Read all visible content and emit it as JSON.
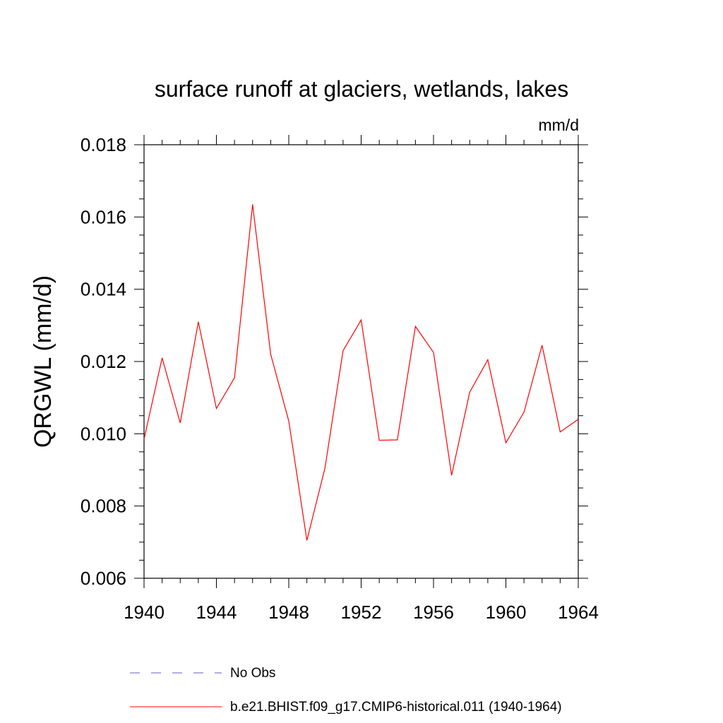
{
  "chart_data": {
    "type": "line",
    "title": "surface runoff at glaciers, wetlands, lakes",
    "units": "mm/d",
    "ylabel": "QRGWL  (mm/d)",
    "xlabel": "",
    "xlim": [
      1940,
      1964
    ],
    "ylim": [
      0.006,
      0.018
    ],
    "x_ticks": [
      1940,
      1944,
      1948,
      1952,
      1956,
      1960,
      1964
    ],
    "x_tick_labels": [
      "1940",
      "1944",
      "1948",
      "1952",
      "1956",
      "1960",
      "1964"
    ],
    "y_ticks": [
      0.006,
      0.008,
      0.01,
      0.012,
      0.014,
      0.016,
      0.018
    ],
    "y_tick_labels": [
      "0.006",
      "0.008",
      "0.010",
      "0.012",
      "0.014",
      "0.016",
      "0.018"
    ],
    "grid": false,
    "legend_placement": "bottom",
    "series": [
      {
        "name": "No Obs",
        "color": "#6a5acd",
        "style": "dashed",
        "values": []
      },
      {
        "name": "b.e21.BHIST.f09_g17.CMIP6-historical.011 (1940-1964)",
        "color": "#ff0000",
        "style": "solid",
        "x": [
          1940,
          1941,
          1942,
          1943,
          1944,
          1945,
          1946,
          1947,
          1948,
          1949,
          1950,
          1951,
          1952,
          1953,
          1954,
          1955,
          1956,
          1957,
          1958,
          1959,
          1960,
          1961,
          1962,
          1963,
          1964
        ],
        "values": [
          0.00985,
          0.0121,
          0.0103,
          0.0131,
          0.0107,
          0.01155,
          0.01635,
          0.0122,
          0.01035,
          0.00705,
          0.00905,
          0.0123,
          0.01315,
          0.00982,
          0.00983,
          0.01297,
          0.01225,
          0.00885,
          0.01115,
          0.01205,
          0.00975,
          0.0106,
          0.01245,
          0.01005,
          0.0104
        ]
      }
    ]
  }
}
